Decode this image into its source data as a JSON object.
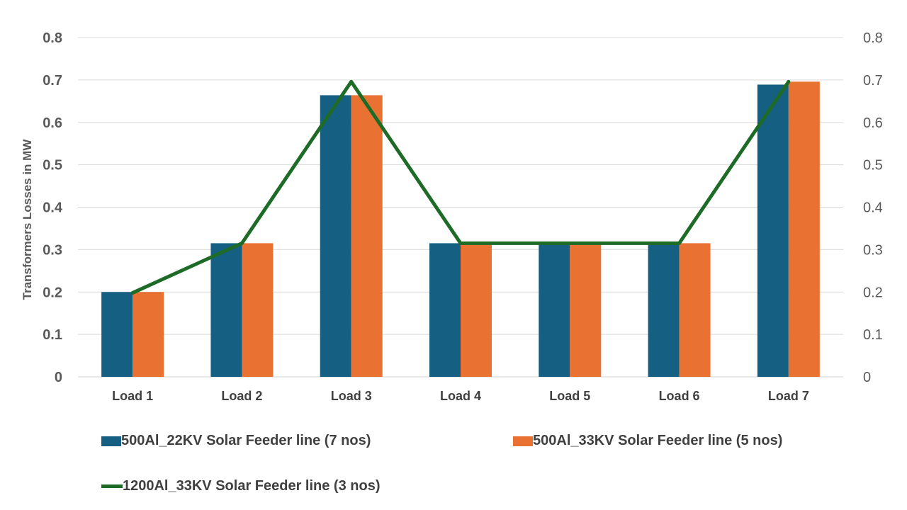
{
  "chart_data": {
    "type": "bar",
    "categories": [
      "Load 1",
      "Load 2",
      "Load 3",
      "Load 4",
      "Load 5",
      "Load 6",
      "Load 7"
    ],
    "series": [
      {
        "name": "500Al_22KV Solar Feeder line (7 nos)",
        "type": "bar",
        "color": "#156082",
        "values": [
          0.2,
          0.315,
          0.664,
          0.315,
          0.315,
          0.315,
          0.689
        ]
      },
      {
        "name": "500Al_33KV Solar Feeder line (5 nos)",
        "type": "bar",
        "color": "#E97132",
        "values": [
          0.2,
          0.315,
          0.664,
          0.315,
          0.315,
          0.315,
          0.696
        ]
      },
      {
        "name": "1200Al_33KV Solar Feeder line (3 nos)",
        "type": "line",
        "color": "#1E6B27",
        "values": [
          0.198,
          0.315,
          0.696,
          0.315,
          0.315,
          0.315,
          0.696
        ]
      }
    ],
    "ylabel": "Transformers Losses in MW",
    "ylim": [
      0,
      0.8
    ],
    "y_ticks": [
      "0",
      "0.1",
      "0.2",
      "0.3",
      "0.4",
      "0.5",
      "0.6",
      "0.7",
      "0.8"
    ],
    "secondary_ylim": [
      0,
      0.8
    ],
    "grid": true,
    "legend_position": "bottom"
  }
}
